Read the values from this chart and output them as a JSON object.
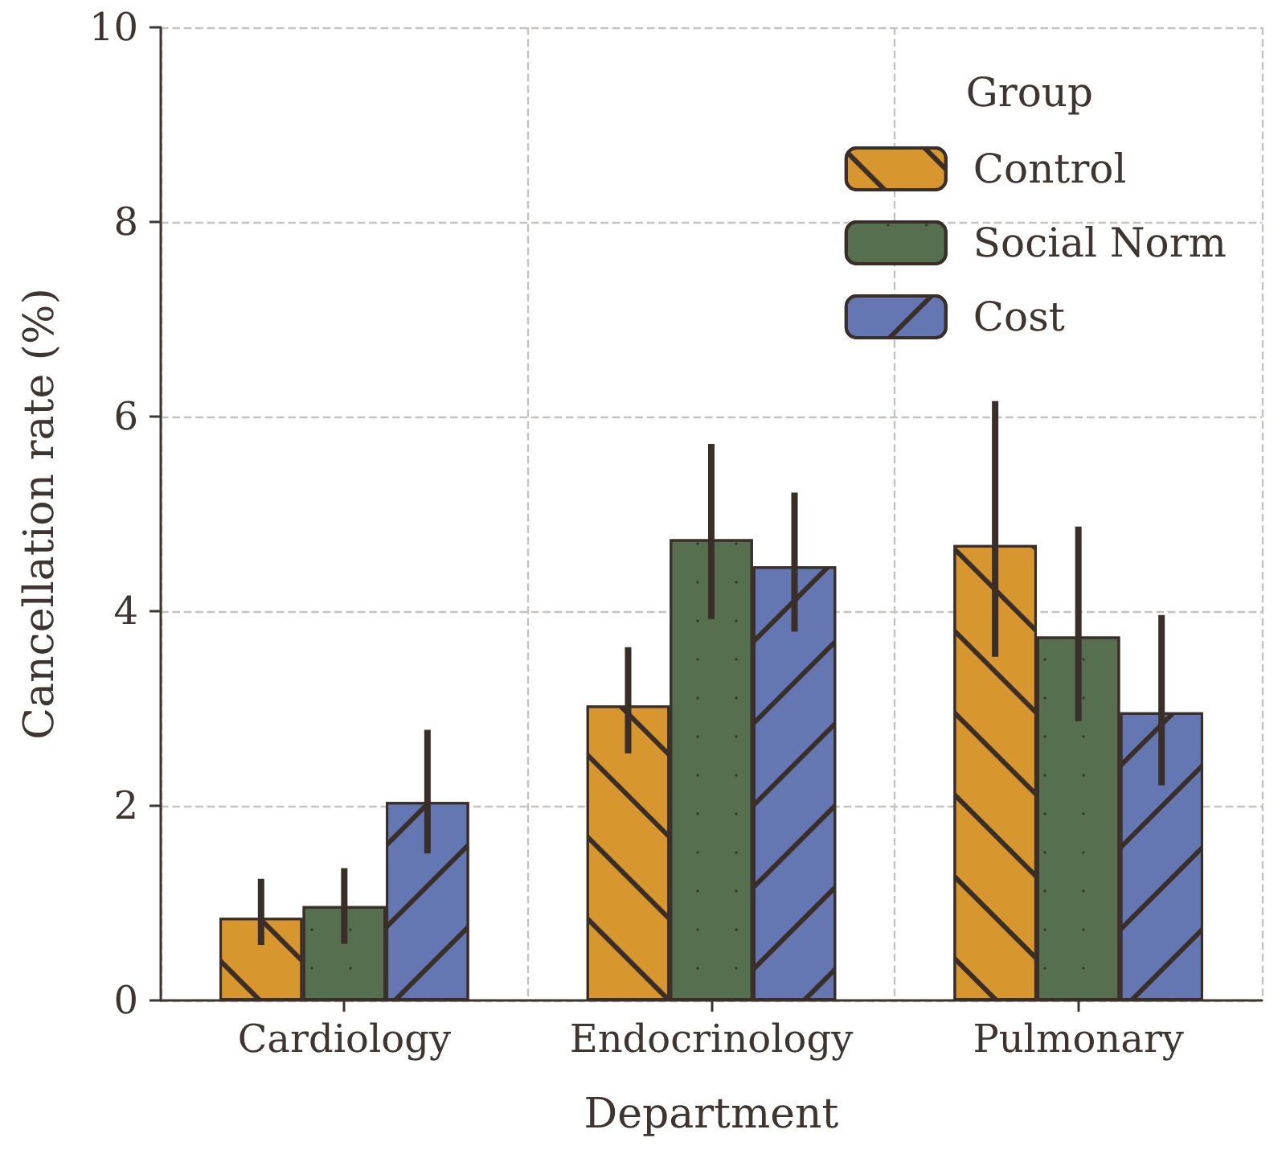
{
  "chart_data": {
    "type": "bar",
    "xlabel": "Department",
    "ylabel": "Cancellation rate (%)",
    "legend_title": "Group",
    "categories": [
      "Cardiology",
      "Endocrinology",
      "Pulmonary"
    ],
    "series": [
      {
        "name": "Control",
        "color": "#d8962f",
        "values": [
          0.85,
          3.03,
          4.68
        ],
        "errors": [
          [
            0.57,
            1.25
          ],
          [
            2.54,
            3.63
          ],
          [
            3.53,
            6.16
          ]
        ]
      },
      {
        "name": "Social Norm",
        "color": "#56704f",
        "values": [
          0.97,
          4.74,
          3.74
        ],
        "errors": [
          [
            0.58,
            1.36
          ],
          [
            3.92,
            5.72
          ],
          [
            2.87,
            4.87
          ]
        ]
      },
      {
        "name": "Cost",
        "color": "#6577b3",
        "values": [
          2.04,
          4.46,
          2.96
        ],
        "errors": [
          [
            1.51,
            2.78
          ],
          [
            3.79,
            5.22
          ],
          [
            2.21,
            3.96
          ]
        ]
      }
    ],
    "ylim": [
      0,
      10
    ],
    "yticks": [
      0,
      2,
      4,
      6,
      8,
      10
    ],
    "grid": true,
    "legend": "top right"
  }
}
